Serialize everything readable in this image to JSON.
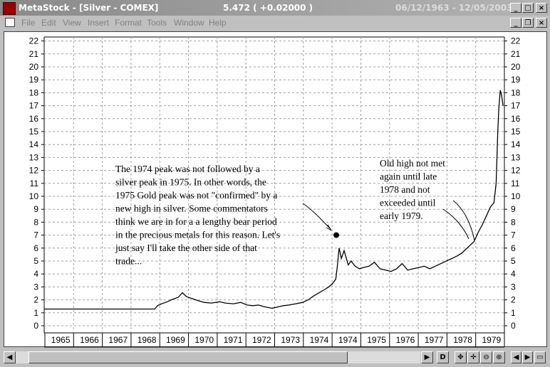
{
  "window": {
    "title": "MetaStock - [Silver - COMEX]",
    "last_price": "5.472 ( +0.02000 )",
    "date_range": "06/12/1963 - 12/05/2003",
    "minimize_glyph": "_",
    "maximize_glyph": "□",
    "close_glyph": "×",
    "restore_glyph": "❐"
  },
  "menu": {
    "items": [
      "File",
      "Edit",
      "View",
      "Insert",
      "Format",
      "Tools",
      "Window",
      "Help"
    ]
  },
  "chart_data": {
    "type": "line",
    "y_ticks": [
      0,
      1,
      2,
      3,
      4,
      5,
      6,
      7,
      8,
      9,
      10,
      11,
      12,
      13,
      14,
      15,
      16,
      17,
      18,
      19,
      20,
      21,
      22
    ],
    "ylim": [
      0,
      22
    ],
    "x_labels": [
      "1965",
      "1966",
      "1967",
      "1968",
      "1969",
      "1970",
      "1971",
      "1972",
      "1973",
      "1974",
      "1974",
      "1975",
      "1976",
      "1977",
      "1978",
      "1979"
    ],
    "grid": true,
    "series": [
      {
        "x": [
          "1963.45",
          "1967.45",
          "1967.55",
          "1967.7",
          "1967.9",
          "1968.1",
          "1968.3",
          "1968.45",
          "1968.6",
          "1968.8",
          "1969.0",
          "1969.25",
          "1969.5",
          "1969.8",
          "1970.0",
          "1970.3",
          "1970.55",
          "1970.8",
          "1971.0",
          "1971.2",
          "1971.45",
          "1971.7",
          "1971.9",
          "1972.1",
          "1972.3",
          "1972.55",
          "1972.8",
          "1973.0",
          "1973.2",
          "1973.4",
          "1973.6",
          "1973.75",
          "1973.9",
          "1974.0",
          "1974.05",
          "1974.12",
          "1974.2",
          "1974.3",
          "1974.45",
          "1974.55",
          "1974.7",
          "1974.85",
          "1975.0",
          "1975.2",
          "1975.4",
          "1975.6",
          "1975.8",
          "1976.0",
          "1976.2",
          "1976.4",
          "1976.6",
          "1976.8",
          "1977.0",
          "1977.2",
          "1977.4",
          "1977.6",
          "1977.8",
          "1978.0",
          "1978.2",
          "1978.4",
          "1978.55",
          "1978.7",
          "1978.85",
          "1979.0",
          "1979.15",
          "1979.3",
          "1979.45",
          "1979.6",
          "1979.72",
          "1979.8",
          "1979.86",
          "1979.9",
          "1979.95",
          "1980.0",
          "1980.05"
        ],
        "values": [
          1.29,
          1.29,
          1.55,
          1.7,
          1.85,
          2.05,
          2.2,
          2.55,
          2.25,
          2.1,
          1.95,
          1.8,
          1.75,
          1.85,
          1.75,
          1.7,
          1.8,
          1.6,
          1.55,
          1.6,
          1.45,
          1.35,
          1.45,
          1.55,
          1.6,
          1.7,
          1.8,
          2.0,
          2.3,
          2.55,
          2.8,
          3.0,
          3.3,
          3.6,
          4.5,
          6.0,
          5.2,
          5.8,
          4.7,
          5.0,
          4.6,
          4.4,
          4.5,
          4.6,
          4.9,
          4.4,
          4.3,
          4.2,
          4.4,
          4.8,
          4.3,
          4.4,
          4.5,
          4.6,
          4.4,
          4.6,
          4.8,
          5.0,
          5.2,
          5.4,
          5.6,
          5.9,
          6.2,
          6.5,
          7.2,
          7.8,
          8.5,
          9.2,
          9.5,
          11,
          15,
          16.8,
          18.2,
          17.8,
          17.0
        ]
      }
    ],
    "annotations": [
      {
        "lines": [
          "The 1974 peak was not followed by a",
          "silver peak in 1975. In other words, the",
          "1975 Gold peak was not \"confirmed\" by a",
          "new high in silver. Some commentators",
          "think we are in for a a lengthy bear period",
          "in the precious metals for this reason. Let's",
          "just say I'll take the other side of that",
          "trade..."
        ]
      },
      {
        "lines": [
          "Old high not met",
          "again until late",
          "1978 and not",
          "exceeded until",
          "early 1979."
        ]
      }
    ]
  },
  "bottombar": {
    "left_arrow": "◀",
    "right_arrow": "▶",
    "tool_d": "D",
    "tool_pan": "✥",
    "tool_move": "✛",
    "tool_zoom_out": "⊖",
    "tool_zoom_in": "⊕",
    "tool_prev": "◀",
    "tool_next": "▶",
    "tool_box": "▭"
  }
}
